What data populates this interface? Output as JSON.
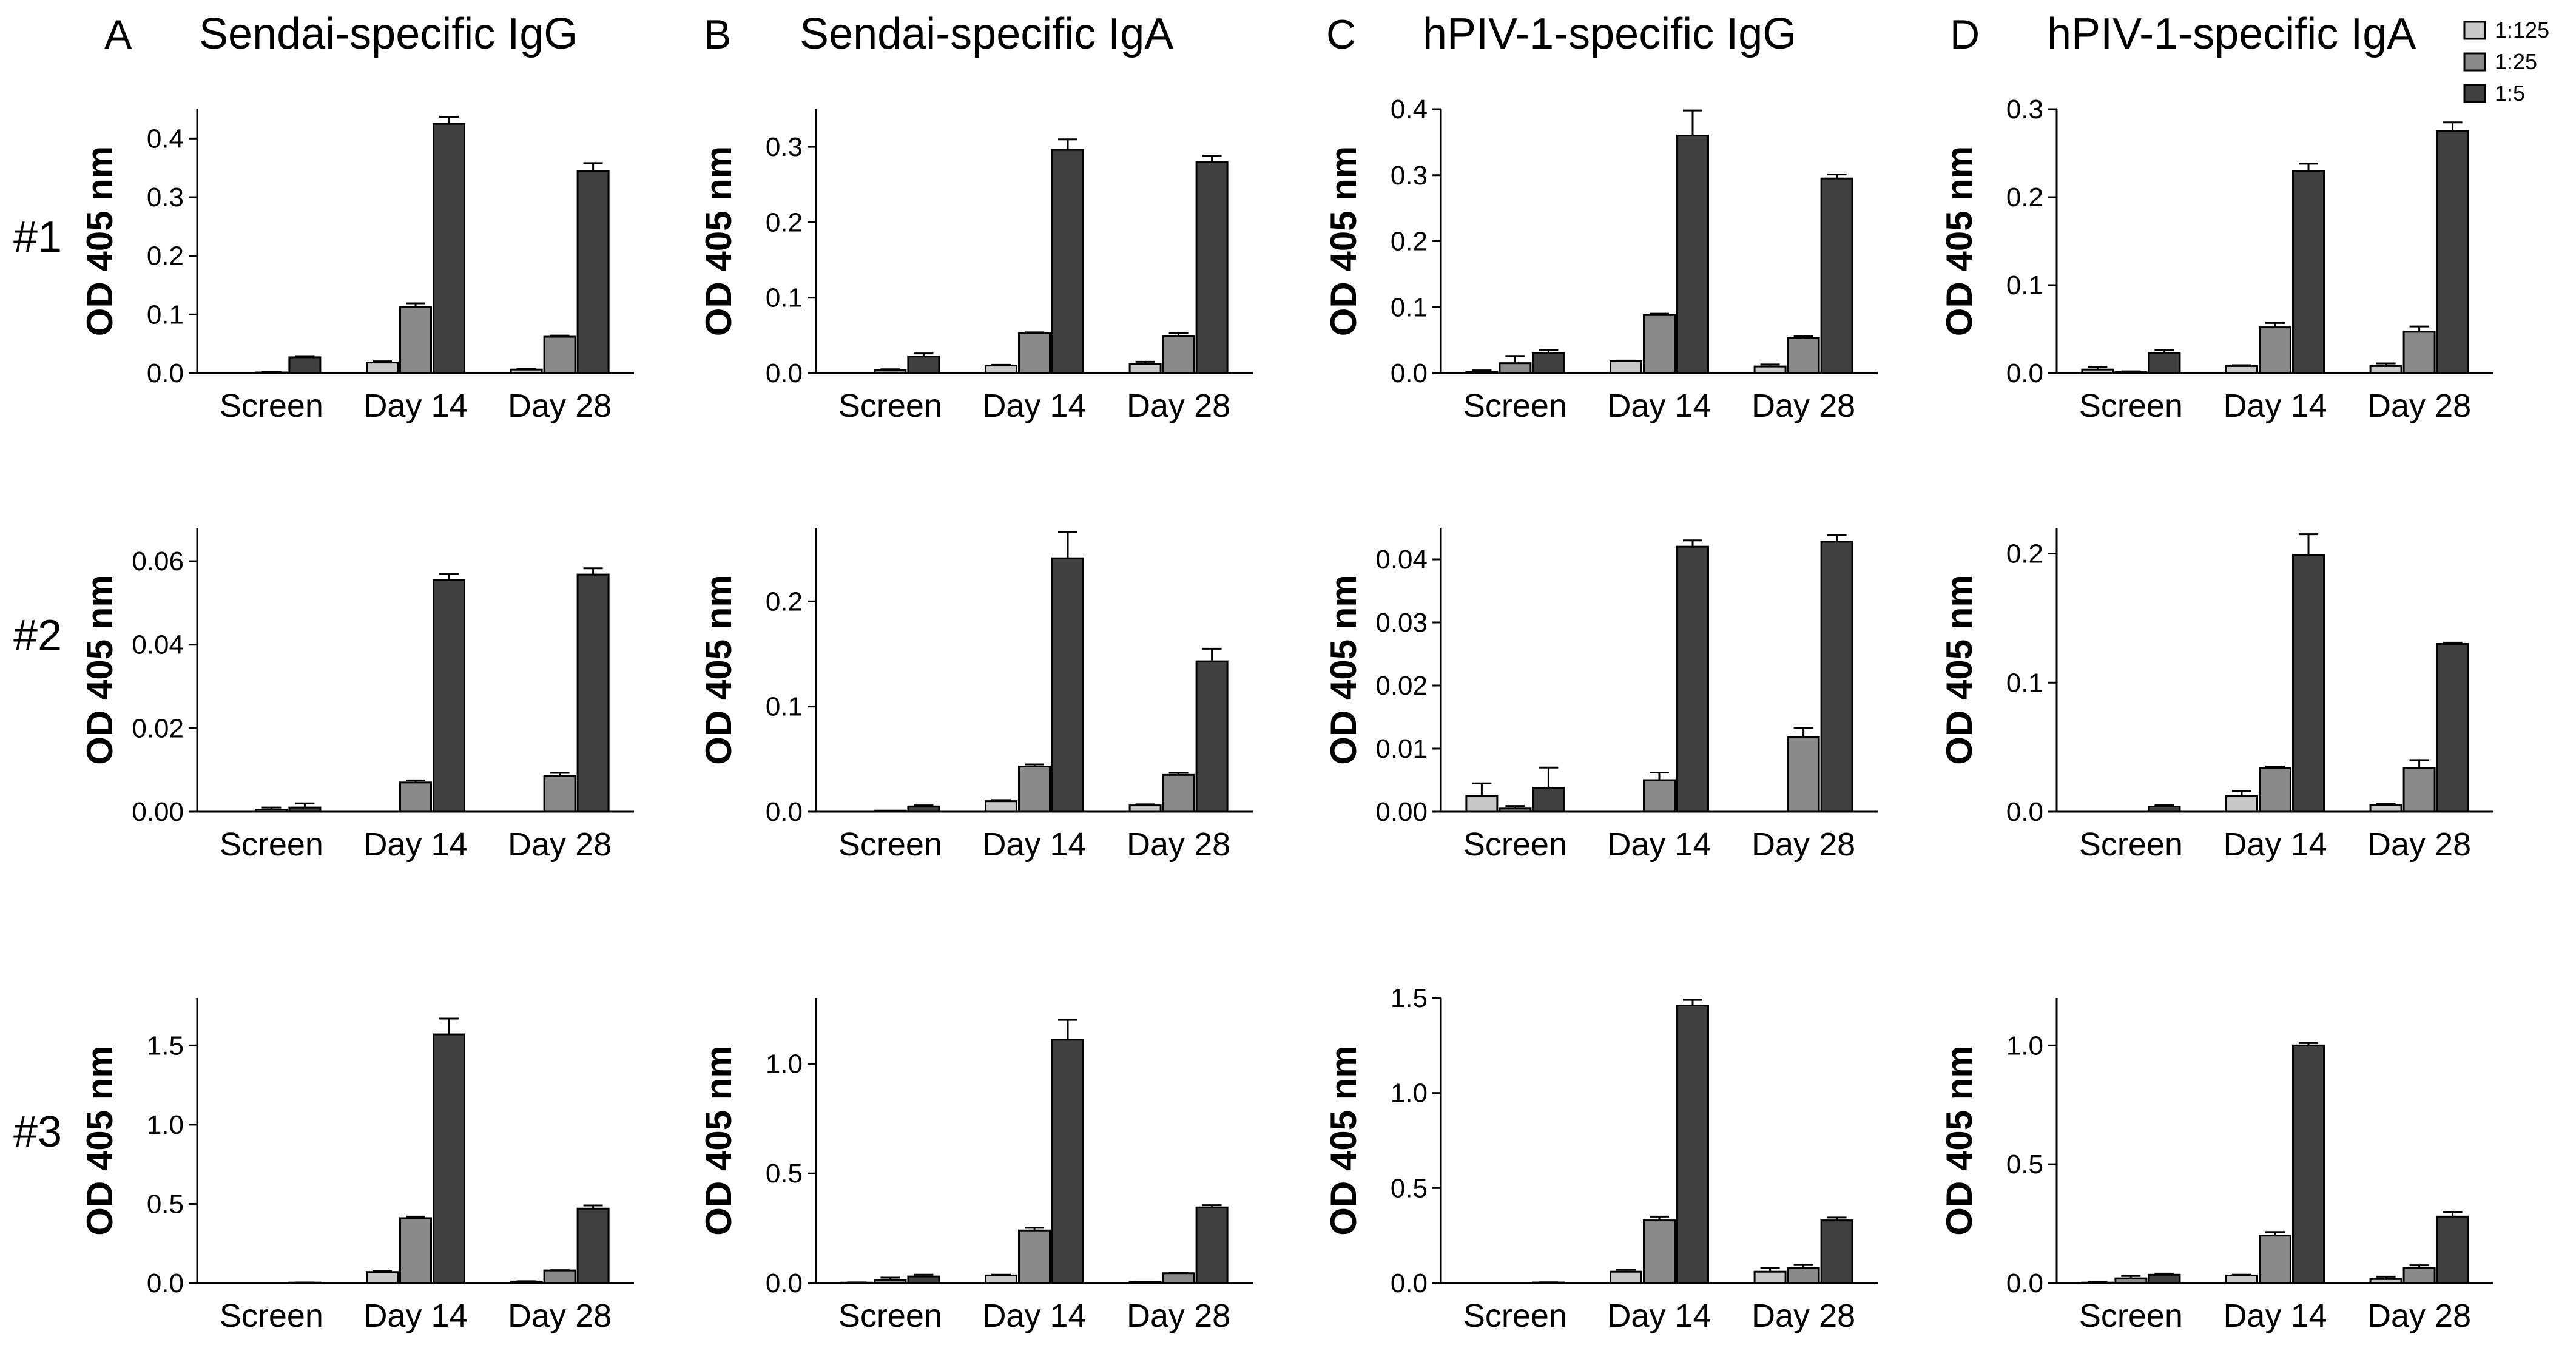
{
  "legend": [
    {
      "label": "1:125",
      "color": "#c8c8c8"
    },
    {
      "label": "1:25",
      "color": "#8a8a8a"
    },
    {
      "label": "1:5",
      "color": "#404040"
    }
  ],
  "row_labels": [
    "#1",
    "#2",
    "#3"
  ],
  "columns": [
    {
      "letter": "A",
      "title": "Sendai-specific IgG"
    },
    {
      "letter": "B",
      "title": "Sendai-specific IgA"
    },
    {
      "letter": "C",
      "title": "hPIV-1-specific IgG"
    },
    {
      "letter": "D",
      "title": "hPIV-1-specific IgA"
    }
  ],
  "chart_data": [
    {
      "type": "bar",
      "row": 0,
      "col": 0,
      "ylabel": "OD 405 nm",
      "ylim": [
        0,
        0.45
      ],
      "yticks": [
        "0.0",
        "0.1",
        "0.2",
        "0.3",
        "0.4"
      ],
      "categories": [
        "Screen",
        "Day 14",
        "Day 28"
      ],
      "series": [
        {
          "name": "1:125",
          "values": [
            0,
            0.018,
            0.006
          ],
          "errors": [
            0,
            0.002,
            0.001
          ]
        },
        {
          "name": "1:25",
          "values": [
            0.001,
            0.113,
            0.062
          ],
          "errors": [
            0.001,
            0.006,
            0.002
          ]
        },
        {
          "name": "1:5",
          "values": [
            0.027,
            0.425,
            0.345
          ],
          "errors": [
            0.002,
            0.012,
            0.013
          ]
        }
      ]
    },
    {
      "type": "bar",
      "row": 0,
      "col": 1,
      "ylabel": "OD 405 nm",
      "ylim": [
        0,
        0.35
      ],
      "yticks": [
        "0.0",
        "0.1",
        "0.2",
        "0.3"
      ],
      "categories": [
        "Screen",
        "Day 14",
        "Day 28"
      ],
      "series": [
        {
          "name": "1:125",
          "values": [
            0,
            0.01,
            0.012
          ],
          "errors": [
            0,
            0.001,
            0.003
          ]
        },
        {
          "name": "1:25",
          "values": [
            0.004,
            0.053,
            0.049
          ],
          "errors": [
            0.001,
            0.001,
            0.004
          ]
        },
        {
          "name": "1:5",
          "values": [
            0.022,
            0.296,
            0.28
          ],
          "errors": [
            0.004,
            0.014,
            0.008
          ]
        }
      ]
    },
    {
      "type": "bar",
      "row": 0,
      "col": 2,
      "ylabel": "OD 405 nm",
      "ylim": [
        0,
        0.4
      ],
      "yticks": [
        "0.0",
        "0.1",
        "0.2",
        "0.3",
        "0.4"
      ],
      "categories": [
        "Screen",
        "Day 14",
        "Day 28"
      ],
      "series": [
        {
          "name": "1:125",
          "values": [
            0.002,
            0.018,
            0.01
          ],
          "errors": [
            0.002,
            0.001,
            0.003
          ]
        },
        {
          "name": "1:25",
          "values": [
            0.015,
            0.088,
            0.053
          ],
          "errors": [
            0.011,
            0.002,
            0.003
          ]
        },
        {
          "name": "1:5",
          "values": [
            0.03,
            0.36,
            0.295
          ],
          "errors": [
            0.005,
            0.038,
            0.006
          ]
        }
      ]
    },
    {
      "type": "bar",
      "row": 0,
      "col": 3,
      "ylabel": "OD 405 nm",
      "ylim": [
        0,
        0.3
      ],
      "yticks": [
        "0.0",
        "0.1",
        "0.2",
        "0.3"
      ],
      "categories": [
        "Screen",
        "Day 14",
        "Day 28"
      ],
      "series": [
        {
          "name": "1:125",
          "values": [
            0.004,
            0.008,
            0.008
          ],
          "errors": [
            0.003,
            0.001,
            0.003
          ]
        },
        {
          "name": "1:25",
          "values": [
            0.001,
            0.052,
            0.047
          ],
          "errors": [
            0.001,
            0.005,
            0.006
          ]
        },
        {
          "name": "1:5",
          "values": [
            0.023,
            0.23,
            0.275
          ],
          "errors": [
            0.003,
            0.008,
            0.01
          ]
        }
      ]
    },
    {
      "type": "bar",
      "row": 1,
      "col": 0,
      "ylabel": "OD 405 nm",
      "ylim": [
        0,
        0.068
      ],
      "yticks": [
        "0.00",
        "0.02",
        "0.04",
        "0.06"
      ],
      "categories": [
        "Screen",
        "Day 14",
        "Day 28"
      ],
      "series": [
        {
          "name": "1:125",
          "values": [
            0,
            0,
            0
          ],
          "errors": [
            0,
            0,
            0
          ]
        },
        {
          "name": "1:25",
          "values": [
            0.0005,
            0.007,
            0.0085
          ],
          "errors": [
            0.0005,
            0.0005,
            0.0008
          ]
        },
        {
          "name": "1:5",
          "values": [
            0.001,
            0.0555,
            0.0568
          ],
          "errors": [
            0.001,
            0.0015,
            0.0015
          ]
        }
      ]
    },
    {
      "type": "bar",
      "row": 1,
      "col": 1,
      "ylabel": "OD 405 nm",
      "ylim": [
        0,
        0.27
      ],
      "yticks": [
        "0.0",
        "0.1",
        "0.2"
      ],
      "categories": [
        "Screen",
        "Day 14",
        "Day 28"
      ],
      "series": [
        {
          "name": "1:125",
          "values": [
            0,
            0.01,
            0.006
          ],
          "errors": [
            0,
            0.001,
            0.001
          ]
        },
        {
          "name": "1:25",
          "values": [
            0.001,
            0.043,
            0.035
          ],
          "errors": [
            0,
            0.002,
            0.002
          ]
        },
        {
          "name": "1:5",
          "values": [
            0.005,
            0.241,
            0.143
          ],
          "errors": [
            0.001,
            0.025,
            0.012
          ]
        }
      ]
    },
    {
      "type": "bar",
      "row": 1,
      "col": 2,
      "ylabel": "OD 405 nm",
      "ylim": [
        0,
        0.045
      ],
      "yticks": [
        "0.00",
        "0.01",
        "0.02",
        "0.03",
        "0.04"
      ],
      "categories": [
        "Screen",
        "Day 14",
        "Day 28"
      ],
      "series": [
        {
          "name": "1:125",
          "values": [
            0.0025,
            0,
            0
          ],
          "errors": [
            0.002,
            0,
            0
          ]
        },
        {
          "name": "1:25",
          "values": [
            0.0005,
            0.005,
            0.0118
          ],
          "errors": [
            0.0004,
            0.0012,
            0.0015
          ]
        },
        {
          "name": "1:5",
          "values": [
            0.0038,
            0.042,
            0.0428
          ],
          "errors": [
            0.0032,
            0.001,
            0.001
          ]
        }
      ]
    },
    {
      "type": "bar",
      "row": 1,
      "col": 3,
      "ylabel": "OD 405 nm",
      "ylim": [
        0,
        0.22
      ],
      "yticks": [
        "0.0",
        "0.1",
        "0.2"
      ],
      "categories": [
        "Screen",
        "Day 14",
        "Day 28"
      ],
      "series": [
        {
          "name": "1:125",
          "values": [
            0,
            0.012,
            0.005
          ],
          "errors": [
            0,
            0.004,
            0.001
          ]
        },
        {
          "name": "1:25",
          "values": [
            0,
            0.034,
            0.034
          ],
          "errors": [
            0,
            0.001,
            0.006
          ]
        },
        {
          "name": "1:5",
          "values": [
            0.004,
            0.199,
            0.13
          ],
          "errors": [
            0.001,
            0.016,
            0.001
          ]
        }
      ]
    },
    {
      "type": "bar",
      "row": 2,
      "col": 0,
      "ylabel": "OD 405 nm",
      "ylim": [
        0,
        1.8
      ],
      "yticks": [
        "0.0",
        "0.5",
        "1.0",
        "1.5"
      ],
      "categories": [
        "Screen",
        "Day 14",
        "Day 28"
      ],
      "series": [
        {
          "name": "1:125",
          "values": [
            0,
            0.07,
            0.01
          ],
          "errors": [
            0,
            0.005,
            0.002
          ]
        },
        {
          "name": "1:25",
          "values": [
            0,
            0.41,
            0.08
          ],
          "errors": [
            0,
            0.01,
            0.002
          ]
        },
        {
          "name": "1:5",
          "values": [
            0.003,
            1.57,
            0.47
          ],
          "errors": [
            0.001,
            0.1,
            0.02
          ]
        }
      ]
    },
    {
      "type": "bar",
      "row": 2,
      "col": 1,
      "ylabel": "OD 405 nm",
      "ylim": [
        0,
        1.3
      ],
      "yticks": [
        "0.0",
        "0.5",
        "1.0"
      ],
      "categories": [
        "Screen",
        "Day 14",
        "Day 28"
      ],
      "series": [
        {
          "name": "1:125",
          "values": [
            0.002,
            0.035,
            0.005
          ],
          "errors": [
            0.001,
            0.003,
            0.001
          ]
        },
        {
          "name": "1:25",
          "values": [
            0.015,
            0.24,
            0.045
          ],
          "errors": [
            0.01,
            0.012,
            0.003
          ]
        },
        {
          "name": "1:5",
          "values": [
            0.03,
            1.11,
            0.345
          ],
          "errors": [
            0.008,
            0.09,
            0.01
          ]
        }
      ]
    },
    {
      "type": "bar",
      "row": 2,
      "col": 2,
      "ylabel": "OD 405 nm",
      "ylim": [
        0,
        1.5
      ],
      "yticks": [
        "0.0",
        "0.5",
        "1.0",
        "1.5"
      ],
      "categories": [
        "Screen",
        "Day 14",
        "Day 28"
      ],
      "series": [
        {
          "name": "1:125",
          "values": [
            0,
            0.06,
            0.06
          ],
          "errors": [
            0,
            0.01,
            0.02
          ]
        },
        {
          "name": "1:25",
          "values": [
            0,
            0.33,
            0.08
          ],
          "errors": [
            0,
            0.02,
            0.015
          ]
        },
        {
          "name": "1:5",
          "values": [
            0.003,
            1.46,
            0.33
          ],
          "errors": [
            0.001,
            0.03,
            0.015
          ]
        }
      ]
    },
    {
      "type": "bar",
      "row": 2,
      "col": 3,
      "ylabel": "OD 405 nm",
      "ylim": [
        0,
        1.2
      ],
      "yticks": [
        "0.0",
        "0.5",
        "1.0"
      ],
      "categories": [
        "Screen",
        "Day 14",
        "Day 28"
      ],
      "series": [
        {
          "name": "1:125",
          "values": [
            0.002,
            0.032,
            0.017
          ],
          "errors": [
            0.002,
            0.003,
            0.01
          ]
        },
        {
          "name": "1:25",
          "values": [
            0.02,
            0.2,
            0.065
          ],
          "errors": [
            0.01,
            0.015,
            0.01
          ]
        },
        {
          "name": "1:5",
          "values": [
            0.035,
            1,
            0.28
          ],
          "errors": [
            0.005,
            0.01,
            0.02
          ]
        }
      ]
    }
  ]
}
